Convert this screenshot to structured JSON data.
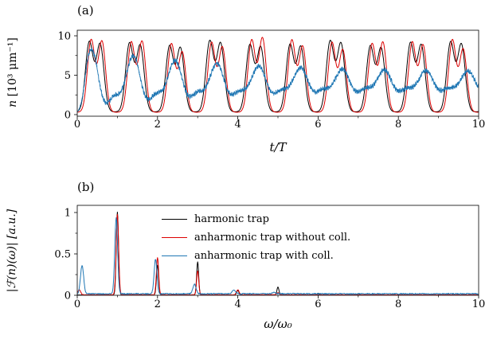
{
  "figure": {
    "panel_a": {
      "tag": "(a)",
      "ylabel_var": "n",
      "ylabel_unit": " [10³ μm⁻¹]",
      "xlabel": "t/T"
    },
    "panel_b": {
      "tag": "(b)",
      "ylabel": "|ℱ(n)(ω)|  [a.u.]",
      "xlabel": "ω/ω₀"
    },
    "legend": {
      "items": [
        {
          "label": "harmonic trap",
          "color": "#000000"
        },
        {
          "label": "anharmonic trap without coll.",
          "color": "#dd0000"
        },
        {
          "label": "anharmonic trap with coll.",
          "color": "#1f77b4"
        }
      ]
    }
  },
  "chart_data": [
    {
      "type": "line",
      "panel": "a",
      "title": "",
      "xlabel": "t/T",
      "ylabel": "n [10^3 um^-1]",
      "xlim": [
        0,
        10
      ],
      "ylim": [
        0,
        10.8
      ],
      "xticks": [
        0,
        2,
        4,
        6,
        8,
        10
      ],
      "xtick_labels": [
        "0",
        "2",
        "4",
        "6",
        "8",
        "10"
      ],
      "x_minor": [
        1,
        3,
        5,
        7,
        9
      ],
      "yticks": [
        0,
        5,
        10
      ],
      "ytick_labels": [
        "0",
        "5",
        "10"
      ],
      "y_minor": [
        2.5,
        7.5
      ],
      "description": "Density oscillations vs time: black and red curves are periodic (period 1 t/T) with double-humped maxima reaching about 9 and minima near 0.3; the dip between the two sub-peaks is about 6.5. The blue collisional curve is noisy, oscillates near the same period with mean about 4 and slowly decaying amplitude (peaks ~8 early decaying to ~5, minima ~1 rising to ~2.5).",
      "series": [
        {
          "name": "harmonic trap",
          "color": "#000000",
          "model": {
            "type": "double_gaussian_train",
            "base": 0.35,
            "amplitude": 8.6,
            "peak1_phase": 0.3,
            "peak2_phase": 0.57,
            "width": 0.135,
            "second_peak_ratio": 0.97,
            "ratio_mod": 0.0,
            "ratio_mod_freq": 0.0,
            "ratio_mod_phase": 0.0,
            "amp_mod": 0.04,
            "amp_mod_freq": 2.3,
            "amp_mod_phase": 0.7
          }
        },
        {
          "name": "anharmonic trap without coll.",
          "color": "#dd0000",
          "model": {
            "type": "double_gaussian_train",
            "base": 0.3,
            "amplitude": 8.9,
            "peak1_phase": 0.345,
            "peak2_phase": 0.615,
            "width": 0.13,
            "second_peak_ratio": 0.95,
            "ratio_mod": 0.08,
            "ratio_mod_freq": 1.9,
            "ratio_mod_phase": 0.4,
            "amp_mod": 0.03,
            "amp_mod_freq": 1.3,
            "amp_mod_phase": 2.0
          }
        },
        {
          "name": "anharmonic trap with coll.",
          "color": "#1f77b4",
          "model": {
            "type": "noisy_decaying_oscillation",
            "mean": 4.05,
            "amp_base": 1.3,
            "amp_decay": 3.3,
            "decay_rate": 0.3,
            "freq": 0.96,
            "phase": -2.0,
            "h2": 0.35,
            "h2_phase": -0.5,
            "noise": 0.34,
            "clamp_min": 0.2,
            "blend_t": 0.3
          }
        }
      ]
    },
    {
      "type": "line",
      "panel": "b",
      "title": "",
      "xlabel": "omega/omega_0",
      "ylabel": "|F(n)(omega)| [a.u.]",
      "xlim": [
        0,
        10
      ],
      "ylim": [
        0,
        1.09
      ],
      "xticks": [
        0,
        2,
        4,
        6,
        8,
        10
      ],
      "xtick_labels": [
        "0",
        "2",
        "4",
        "6",
        "8",
        "10"
      ],
      "x_minor": [
        1,
        3,
        5,
        7,
        9
      ],
      "yticks": [
        0,
        0.5,
        1
      ],
      "ytick_labels": [
        "0",
        "0.5",
        "1"
      ],
      "y_minor": [
        0.25,
        0.75
      ],
      "description": "Fourier spectrum of the density: dominant peak at omega/omega0 = 1 (height 1), harmonics at 2 and 3; blue collisional spectrum also shows a low-frequency peak near 0.1 and a noisy baseline.",
      "series": [
        {
          "name": "harmonic trap",
          "color": "#000000",
          "noise_floor": 0.006,
          "seed": 1,
          "peaks": [
            {
              "x": 1.0,
              "height": 1.0,
              "width": 0.04
            },
            {
              "x": 2.0,
              "height": 0.36,
              "width": 0.038
            },
            {
              "x": 3.0,
              "height": 0.4,
              "width": 0.036
            },
            {
              "x": 4.0,
              "height": 0.055,
              "width": 0.04
            },
            {
              "x": 5.0,
              "height": 0.095,
              "width": 0.036
            },
            {
              "x": 6.0,
              "height": 0.02,
              "width": 0.04
            },
            {
              "x": 7.0,
              "height": 0.015,
              "width": 0.04
            }
          ]
        },
        {
          "name": "anharmonic trap without coll.",
          "color": "#dd0000",
          "noise_floor": 0.009,
          "seed": 4,
          "peaks": [
            {
              "x": 0.05,
              "height": 0.06,
              "width": 0.05
            },
            {
              "x": 1.0,
              "height": 0.97,
              "width": 0.044
            },
            {
              "x": 2.0,
              "height": 0.45,
              "width": 0.04
            },
            {
              "x": 3.0,
              "height": 0.29,
              "width": 0.038
            },
            {
              "x": 4.0,
              "height": 0.06,
              "width": 0.045
            },
            {
              "x": 5.0,
              "height": 0.025,
              "width": 0.04
            }
          ]
        },
        {
          "name": "anharmonic trap with coll.",
          "color": "#1f77b4",
          "noise_floor": 0.025,
          "seed": 7,
          "peaks": [
            {
              "x": 0.12,
              "height": 0.34,
              "width": 0.055
            },
            {
              "x": 0.97,
              "height": 0.92,
              "width": 0.05
            },
            {
              "x": 1.95,
              "height": 0.42,
              "width": 0.05
            },
            {
              "x": 2.92,
              "height": 0.12,
              "width": 0.055
            },
            {
              "x": 3.9,
              "height": 0.05,
              "width": 0.06
            },
            {
              "x": 4.9,
              "height": 0.02,
              "width": 0.05
            }
          ]
        }
      ]
    }
  ]
}
